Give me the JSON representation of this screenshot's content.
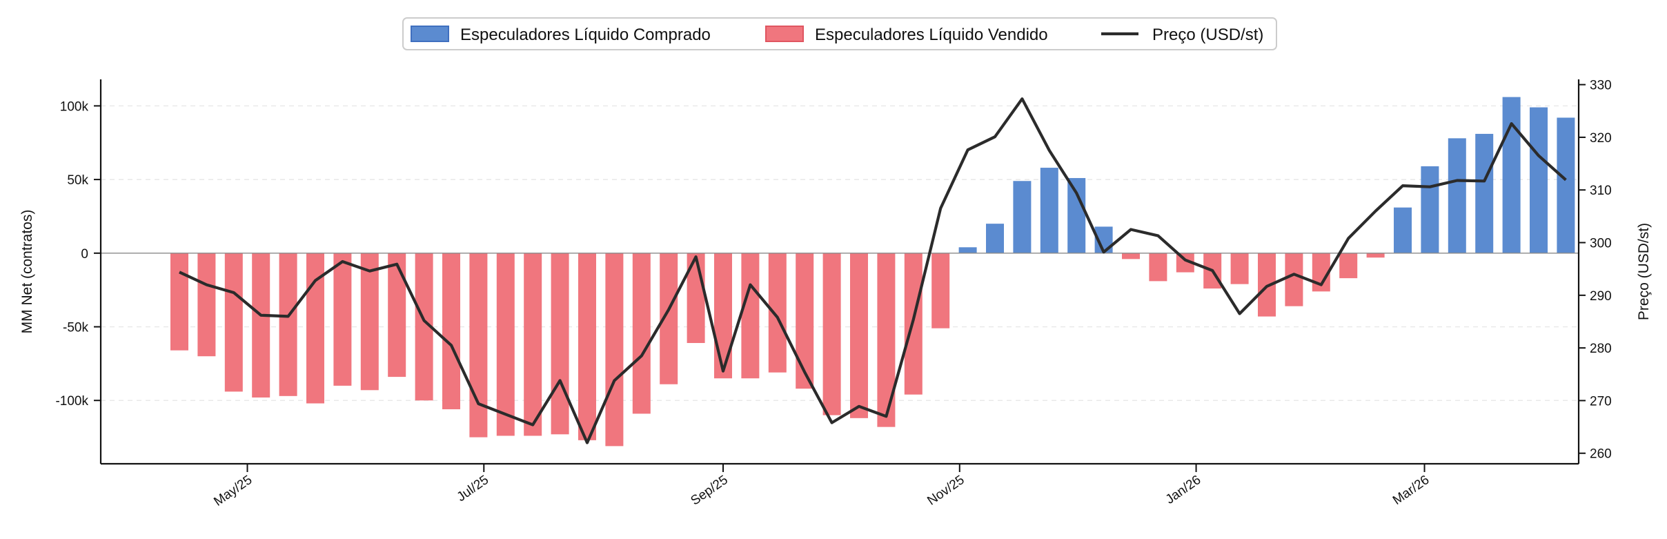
{
  "chart_data": {
    "type": "bar",
    "title": "",
    "colors": {
      "positive": "#5b8bd0",
      "negative": "#f0767e",
      "price_line": "#2b2b2b"
    },
    "legend": {
      "placement": "top-center",
      "entries": [
        {
          "label": "Especuladores Líquido Comprado",
          "kind": "bar-positive"
        },
        {
          "label": "Especuladores Líquido Vendido",
          "kind": "bar-negative"
        },
        {
          "label": "Preço (USD/st)",
          "kind": "line"
        }
      ]
    },
    "y_left": {
      "label": "MM Net (contratos)",
      "ylim": [
        -143000,
        118000
      ],
      "ticks": [
        100000,
        50000,
        0,
        -50000,
        -100000
      ],
      "tick_labels": [
        "100k",
        "50k",
        "0",
        "-50k",
        "-100k"
      ],
      "grid": true
    },
    "y_right": {
      "label": "Preço (USD/st)",
      "ylim": [
        258,
        331
      ],
      "ticks": [
        260,
        270,
        280,
        290,
        300,
        310,
        320,
        330
      ],
      "tick_labels": [
        "260",
        "270",
        "280",
        "290",
        "300",
        "310",
        "320",
        "330"
      ]
    },
    "x_axis": {
      "tick_labels": [
        "May/25",
        "Jul/25",
        "Sep/25",
        "Nov/25",
        "Jan/26",
        "Mar/26"
      ],
      "tick_positions": [
        2.5,
        11.2,
        20.0,
        28.7,
        37.4,
        45.8
      ]
    },
    "series": [
      {
        "name": "MM Net",
        "values": [
          -66000,
          -70000,
          -94000,
          -98000,
          -97000,
          -102000,
          -90000,
          -93000,
          -84000,
          -100000,
          -106000,
          -125000,
          -124000,
          -124000,
          -123000,
          -127000,
          -131000,
          -109000,
          -89000,
          -61000,
          -85000,
          -85000,
          -81000,
          -92000,
          -110000,
          -112000,
          -118000,
          -96000,
          -51000,
          4000,
          20000,
          49000,
          58000,
          51000,
          18000,
          -4000,
          -19000,
          -13000,
          -24000,
          -21000,
          -43000,
          -36000,
          -26000,
          -17000,
          -3000,
          31000,
          59000,
          78000,
          81000,
          106000,
          99000,
          92000
        ]
      },
      {
        "name": "Preço (USD/st)",
        "values": [
          294.4,
          292.0,
          290.5,
          286.2,
          286.0,
          292.8,
          296.4,
          294.6,
          295.9,
          285.2,
          280.5,
          269.4,
          267.4,
          265.4,
          273.8,
          262.0,
          273.8,
          278.5,
          287.3,
          297.3,
          275.6,
          292.0,
          285.8,
          275.4,
          265.8,
          268.9,
          267.0,
          285.4,
          306.5,
          317.6,
          320.1,
          327.3,
          317.5,
          309.4,
          298.2,
          302.5,
          301.3,
          296.7,
          294.7,
          286.5,
          291.7,
          294.0,
          292.0,
          300.8,
          306.0,
          310.8,
          310.6,
          311.8,
          311.7,
          322.6,
          316.5,
          311.9
        ]
      }
    ]
  }
}
